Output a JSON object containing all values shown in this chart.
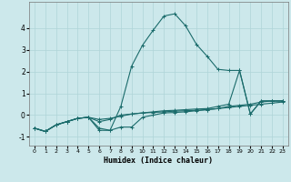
{
  "xlabel": "Humidex (Indice chaleur)",
  "background_color": "#cce8eb",
  "grid_color": "#afd4d8",
  "line_color": "#1a6b6b",
  "xlim": [
    -0.5,
    23.5
  ],
  "ylim": [
    -1.4,
    5.2
  ],
  "x_ticks": [
    0,
    1,
    2,
    3,
    4,
    5,
    6,
    7,
    8,
    9,
    10,
    11,
    12,
    13,
    14,
    15,
    16,
    17,
    18,
    19,
    20,
    21,
    22,
    23
  ],
  "y_ticks": [
    -1,
    0,
    1,
    2,
    3,
    4
  ],
  "series": {
    "line1_x": [
      0,
      1,
      2,
      3,
      4,
      5,
      6,
      7,
      8,
      9,
      10,
      11,
      12,
      13,
      14,
      15,
      16,
      17,
      18,
      19,
      20,
      21,
      22,
      23
    ],
    "line1_y": [
      -0.6,
      -0.75,
      -0.45,
      -0.3,
      -0.15,
      -0.1,
      -0.2,
      -0.15,
      -0.05,
      0.05,
      0.1,
      0.12,
      0.15,
      0.18,
      0.2,
      0.22,
      0.25,
      0.3,
      0.35,
      0.4,
      0.45,
      0.5,
      0.55,
      0.6
    ],
    "line2_x": [
      0,
      1,
      2,
      3,
      4,
      5,
      6,
      7,
      8,
      9,
      10,
      11,
      12,
      13,
      14,
      15,
      16,
      17,
      18,
      19,
      20,
      21,
      22,
      23
    ],
    "line2_y": [
      -0.6,
      -0.75,
      -0.45,
      -0.3,
      -0.15,
      -0.1,
      -0.3,
      -0.2,
      0.0,
      0.05,
      0.1,
      0.15,
      0.2,
      0.22,
      0.25,
      0.28,
      0.3,
      0.4,
      0.5,
      2.05,
      0.05,
      0.65,
      0.65,
      0.65
    ],
    "line3_x": [
      0,
      1,
      2,
      3,
      4,
      5,
      6,
      7,
      8,
      9,
      10,
      11,
      12,
      13,
      14,
      15,
      16,
      17,
      18,
      19,
      20,
      21,
      22,
      23
    ],
    "line3_y": [
      -0.6,
      -0.75,
      -0.45,
      -0.3,
      -0.15,
      -0.1,
      -0.6,
      -0.7,
      0.4,
      2.25,
      3.2,
      3.9,
      4.55,
      4.65,
      4.1,
      3.25,
      2.7,
      2.1,
      2.05,
      2.05,
      0.05,
      0.65,
      0.65,
      0.65
    ],
    "line4_x": [
      0,
      1,
      2,
      3,
      4,
      5,
      6,
      7,
      8,
      9,
      10,
      11,
      12,
      13,
      14,
      15,
      16,
      17,
      18,
      19,
      20,
      21,
      22,
      23
    ],
    "line4_y": [
      -0.6,
      -0.75,
      -0.45,
      -0.3,
      -0.15,
      -0.1,
      -0.7,
      -0.7,
      -0.55,
      -0.55,
      -0.1,
      0.0,
      0.1,
      0.12,
      0.15,
      0.2,
      0.25,
      0.3,
      0.4,
      0.45,
      0.5,
      0.6,
      0.65,
      0.65
    ]
  }
}
